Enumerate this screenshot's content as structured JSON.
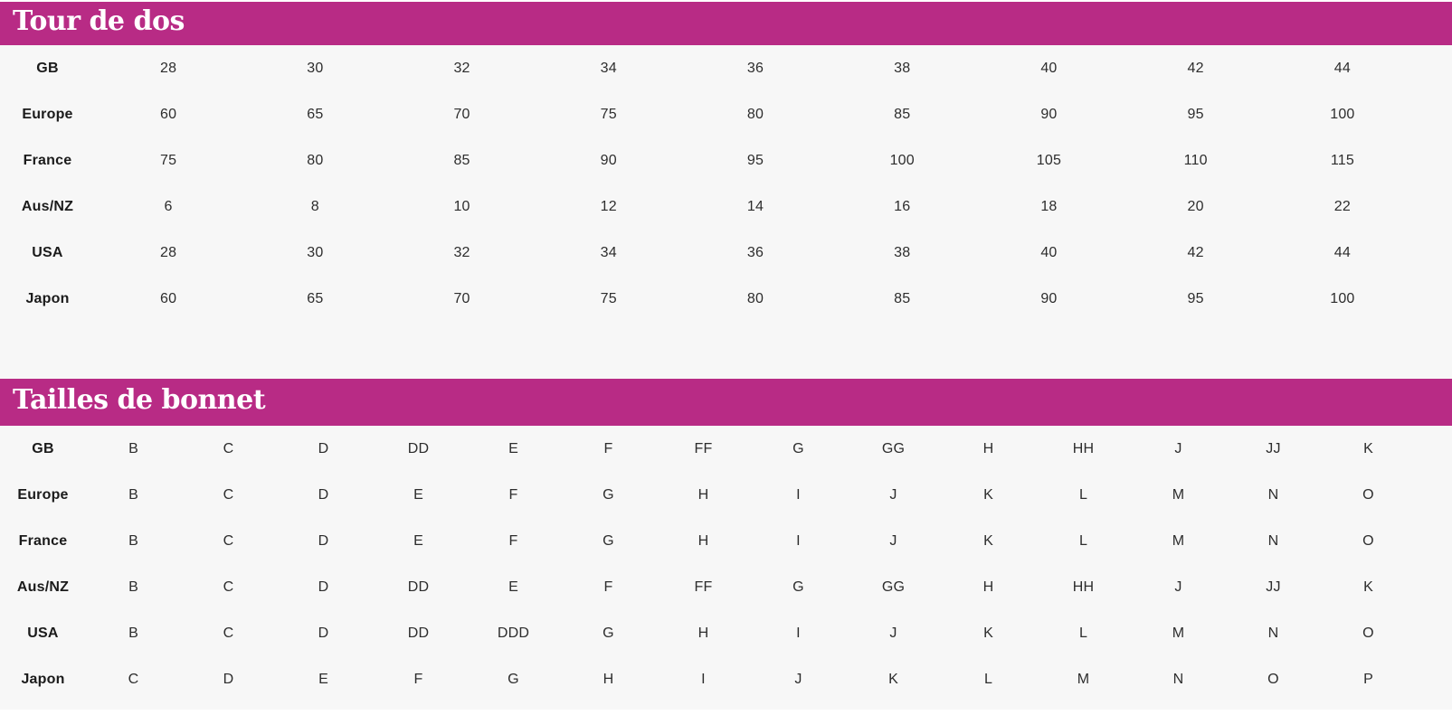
{
  "colors": {
    "accent_magenta": "#b82b85",
    "page_background": "#f7f7f7",
    "title_text": "#ffffff",
    "label_text": "#1b1b1b",
    "value_text": "#2d2d2d"
  },
  "tables": [
    {
      "title": "Tour de dos",
      "rows": [
        {
          "label": "GB",
          "values": [
            "28",
            "30",
            "32",
            "34",
            "36",
            "38",
            "40",
            "42",
            "44"
          ]
        },
        {
          "label": "Europe",
          "values": [
            "60",
            "65",
            "70",
            "75",
            "80",
            "85",
            "90",
            "95",
            "100"
          ]
        },
        {
          "label": "France",
          "values": [
            "75",
            "80",
            "85",
            "90",
            "95",
            "100",
            "105",
            "110",
            "115"
          ]
        },
        {
          "label": "Aus/NZ",
          "values": [
            "6",
            "8",
            "10",
            "12",
            "14",
            "16",
            "18",
            "20",
            "22"
          ]
        },
        {
          "label": "USA",
          "values": [
            "28",
            "30",
            "32",
            "34",
            "36",
            "38",
            "40",
            "42",
            "44"
          ]
        },
        {
          "label": "Japon",
          "values": [
            "60",
            "65",
            "70",
            "75",
            "80",
            "85",
            "90",
            "95",
            "100"
          ]
        }
      ]
    },
    {
      "title": "Tailles de bonnet",
      "rows": [
        {
          "label": "GB",
          "values": [
            "B",
            "C",
            "D",
            "DD",
            "E",
            "F",
            "FF",
            "G",
            "GG",
            "H",
            "HH",
            "J",
            "JJ",
            "K"
          ]
        },
        {
          "label": "Europe",
          "values": [
            "B",
            "C",
            "D",
            "E",
            "F",
            "G",
            "H",
            "I",
            "J",
            "K",
            "L",
            "M",
            "N",
            "O"
          ]
        },
        {
          "label": "France",
          "values": [
            "B",
            "C",
            "D",
            "E",
            "F",
            "G",
            "H",
            "I",
            "J",
            "K",
            "L",
            "M",
            "N",
            "O"
          ]
        },
        {
          "label": "Aus/NZ",
          "values": [
            "B",
            "C",
            "D",
            "DD",
            "E",
            "F",
            "FF",
            "G",
            "GG",
            "H",
            "HH",
            "J",
            "JJ",
            "K"
          ]
        },
        {
          "label": "USA",
          "values": [
            "B",
            "C",
            "D",
            "DD",
            "DDD",
            "G",
            "H",
            "I",
            "J",
            "K",
            "L",
            "M",
            "N",
            "O"
          ]
        },
        {
          "label": "Japon",
          "values": [
            "C",
            "D",
            "E",
            "F",
            "G",
            "H",
            "I",
            "J",
            "K",
            "L",
            "M",
            "N",
            "O",
            "P"
          ]
        }
      ]
    }
  ]
}
